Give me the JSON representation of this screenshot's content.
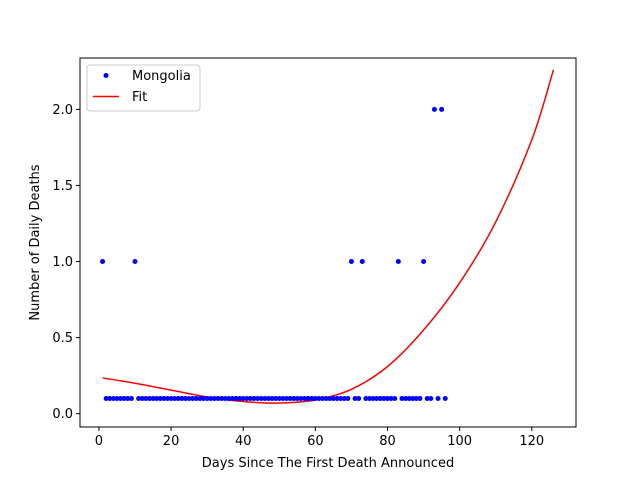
{
  "chart_data": {
    "type": "scatter",
    "xlabel": "Days Since The First Death Announced",
    "ylabel": "Number of Daily Deaths",
    "xlim": [
      -5.25,
      132.25
    ],
    "ylim": [
      -0.0875,
      2.3375
    ],
    "xticks": [
      0,
      20,
      40,
      60,
      80,
      100,
      120
    ],
    "yticks": [
      0.0,
      0.5,
      1.0,
      1.5,
      2.0
    ],
    "xtick_labels": [
      "0",
      "20",
      "40",
      "60",
      "80",
      "100",
      "120"
    ],
    "ytick_labels": [
      "0.0",
      "0.5",
      "1.0",
      "1.5",
      "2.0"
    ],
    "grid": false,
    "legend": {
      "placement": "top-left"
    },
    "colors": {
      "points": "#0000ff",
      "fit": "#ff0000"
    },
    "series": [
      {
        "name": "Mongolia",
        "kind": "points",
        "x": [
          1,
          2,
          3,
          4,
          5,
          6,
          7,
          8,
          9,
          10,
          11,
          12,
          13,
          14,
          15,
          16,
          17,
          18,
          19,
          20,
          21,
          22,
          23,
          24,
          25,
          26,
          27,
          28,
          29,
          30,
          31,
          32,
          33,
          34,
          35,
          36,
          37,
          38,
          39,
          40,
          41,
          42,
          43,
          44,
          45,
          46,
          47,
          48,
          49,
          50,
          51,
          52,
          53,
          54,
          55,
          56,
          57,
          58,
          59,
          60,
          61,
          62,
          63,
          64,
          65,
          66,
          67,
          68,
          69,
          70,
          71,
          72,
          73,
          74,
          75,
          76,
          77,
          78,
          79,
          80,
          81,
          82,
          83,
          84,
          85,
          86,
          87,
          88,
          89,
          90,
          91,
          92,
          93,
          94,
          95,
          96
        ],
        "y": [
          1,
          0.1,
          0.1,
          0.1,
          0.1,
          0.1,
          0.1,
          0.1,
          0.1,
          1,
          0.1,
          0.1,
          0.1,
          0.1,
          0.1,
          0.1,
          0.1,
          0.1,
          0.1,
          0.1,
          0.1,
          0.1,
          0.1,
          0.1,
          0.1,
          0.1,
          0.1,
          0.1,
          0.1,
          0.1,
          0.1,
          0.1,
          0.1,
          0.1,
          0.1,
          0.1,
          0.1,
          0.1,
          0.1,
          0.1,
          0.1,
          0.1,
          0.1,
          0.1,
          0.1,
          0.1,
          0.1,
          0.1,
          0.1,
          0.1,
          0.1,
          0.1,
          0.1,
          0.1,
          0.1,
          0.1,
          0.1,
          0.1,
          0.1,
          0.1,
          0.1,
          0.1,
          0.1,
          0.1,
          0.1,
          0.1,
          0.1,
          0.1,
          0.1,
          1,
          0.1,
          0.1,
          1,
          0.1,
          0.1,
          0.1,
          0.1,
          0.1,
          0.1,
          0.1,
          0.1,
          0.1,
          1,
          0.1,
          0.1,
          0.1,
          0.1,
          0.1,
          0.1,
          1,
          0.1,
          0.1,
          2,
          0.1,
          2,
          0.1
        ]
      },
      {
        "name": "Fit",
        "kind": "line",
        "x": [
          1,
          10,
          20,
          30,
          40,
          50,
          60,
          70,
          80,
          90,
          100,
          110,
          120,
          126
        ],
        "y": [
          0.235,
          0.2,
          0.155,
          0.11,
          0.08,
          0.07,
          0.09,
          0.16,
          0.31,
          0.55,
          0.86,
          1.26,
          1.8,
          2.26
        ]
      }
    ]
  }
}
